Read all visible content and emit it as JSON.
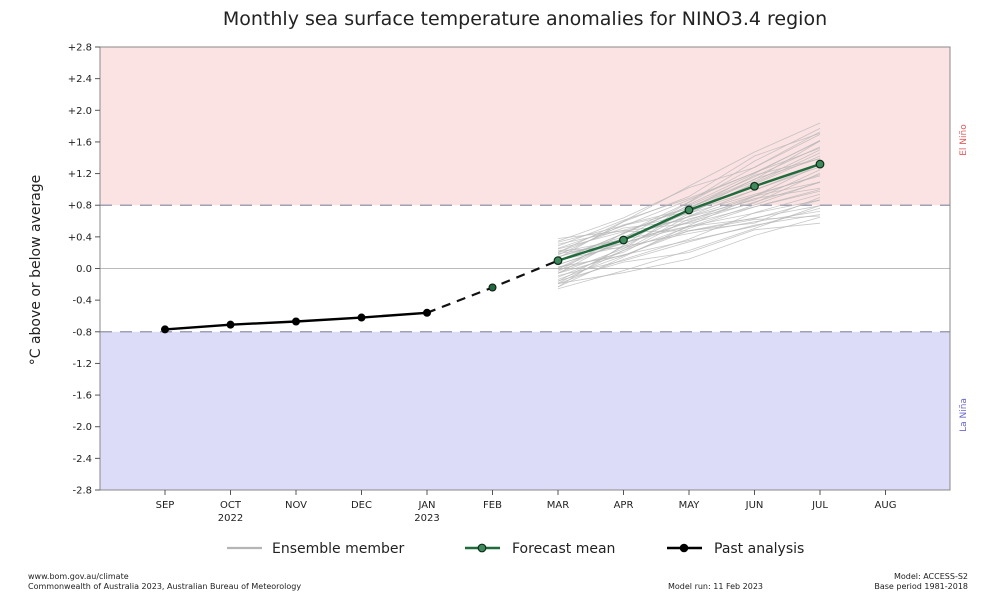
{
  "chart_data": {
    "type": "line",
    "title": "Monthly sea surface temperature anomalies for NINO3.4 region",
    "ylabel": "°C above or below average",
    "xlabel": "",
    "ylim": [
      -2.8,
      2.8
    ],
    "yticks": [
      "+2.8",
      "+2.4",
      "+2.0",
      "+1.6",
      "+1.2",
      "+0.8",
      "+0.4",
      "0.0",
      "-0.4",
      "-0.8",
      "-1.2",
      "-1.6",
      "-2.0",
      "-2.4",
      "-2.8"
    ],
    "ytick_values": [
      2.8,
      2.4,
      2.0,
      1.6,
      1.2,
      0.8,
      0.4,
      0.0,
      -0.4,
      -0.8,
      -1.2,
      -1.6,
      -2.0,
      -2.4,
      -2.8
    ],
    "categories": [
      {
        "label": "SEP",
        "sub": ""
      },
      {
        "label": "OCT",
        "sub": "2022"
      },
      {
        "label": "NOV",
        "sub": ""
      },
      {
        "label": "DEC",
        "sub": ""
      },
      {
        "label": "JAN",
        "sub": "2023"
      },
      {
        "label": "FEB",
        "sub": ""
      },
      {
        "label": "MAR",
        "sub": ""
      },
      {
        "label": "APR",
        "sub": ""
      },
      {
        "label": "MAY",
        "sub": ""
      },
      {
        "label": "JUN",
        "sub": ""
      },
      {
        "label": "JUL",
        "sub": ""
      },
      {
        "label": "AUG",
        "sub": ""
      }
    ],
    "thresholds": {
      "el_nino": 0.8,
      "la_nina": -0.8,
      "el_nino_label": "El Niño",
      "la_nina_label": "La Niña",
      "el_nino_color": "#fbe3e3",
      "la_nina_color": "#dcdcf8",
      "threshold_line_color": "#a0a0b4"
    },
    "series": [
      {
        "name": "Past analysis",
        "color": "#000000",
        "points": [
          [
            0,
            -0.77
          ],
          [
            1,
            -0.71
          ],
          [
            2,
            -0.67
          ],
          [
            3,
            -0.62
          ],
          [
            4,
            -0.56
          ]
        ]
      },
      {
        "name": "Forecast mean",
        "color": "#1e6b3c",
        "points": [
          [
            6,
            0.1
          ],
          [
            7,
            0.36
          ],
          [
            8,
            0.74
          ],
          [
            9,
            1.04
          ],
          [
            10,
            1.32
          ]
        ]
      }
    ],
    "bridge_points": [
      [
        4,
        -0.56
      ],
      [
        5,
        -0.24
      ],
      [
        6,
        0.1
      ]
    ],
    "ensemble": {
      "name": "Ensemble member",
      "color": "#b5b5b5",
      "count": 40,
      "start_range": [
        -0.25,
        0.35
      ],
      "end_range": [
        0.6,
        1.8
      ]
    },
    "legend": {
      "placement": "bottom",
      "entries": [
        {
          "label": "Ensemble member"
        },
        {
          "label": "Forecast mean"
        },
        {
          "label": "Past analysis"
        }
      ]
    },
    "grid": false
  },
  "footer": {
    "left_line1": "www.bom.gov.au/climate",
    "left_line2": "Commonwealth of Australia 2023, Australian Bureau of Meteorology",
    "middle": "Model run: 11 Feb 2023",
    "right_line1": "Model: ACCESS-S2",
    "right_line2": "Base period 1981-2018"
  }
}
